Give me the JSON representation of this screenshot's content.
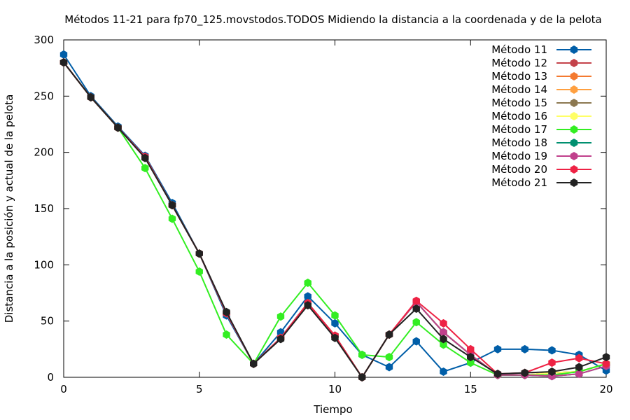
{
  "chart_data": {
    "type": "line",
    "title": "Métodos 11-21 para fp70_125.movstodos.TODOS Midiendo la distancia a la coordenada y de la pelota",
    "xlabel": "Tiempo",
    "ylabel": "Distancia a la posición y actual de la pelota",
    "xlim": [
      0,
      20
    ],
    "ylim": [
      0,
      300
    ],
    "xticks": [
      0,
      5,
      10,
      15,
      20
    ],
    "yticks": [
      0,
      50,
      100,
      150,
      200,
      250,
      300
    ],
    "grid": false,
    "legend_position": "top-right",
    "x": [
      0,
      1,
      2,
      3,
      4,
      5,
      6,
      7,
      8,
      9,
      10,
      11,
      12,
      13,
      14,
      15,
      16,
      17,
      18,
      19,
      20
    ],
    "series": [
      {
        "name": "Método 11",
        "color": "#005ea8",
        "values": [
          287,
          250,
          223,
          197,
          155,
          110,
          55,
          12,
          40,
          72,
          48,
          20,
          9,
          32,
          5,
          13,
          25,
          25,
          24,
          20,
          6
        ]
      },
      {
        "name": "Método 12",
        "color": "#c4424a",
        "values": [
          280,
          249,
          222,
          196,
          153,
          110,
          57,
          12,
          35,
          66,
          37,
          0,
          38,
          67,
          40,
          20,
          2,
          2,
          4,
          5,
          12
        ]
      },
      {
        "name": "Método 13",
        "color": "#f47a30",
        "values": [
          280,
          249,
          222,
          196,
          153,
          110,
          57,
          12,
          35,
          66,
          37,
          0,
          38,
          67,
          40,
          20,
          2,
          2,
          4,
          5,
          12
        ]
      },
      {
        "name": "Método 14",
        "color": "#ffa040",
        "values": [
          280,
          249,
          222,
          196,
          153,
          110,
          57,
          12,
          35,
          66,
          37,
          0,
          38,
          67,
          40,
          20,
          2,
          2,
          4,
          5,
          12
        ]
      },
      {
        "name": "Método 15",
        "color": "#8c7850",
        "values": [
          280,
          249,
          222,
          196,
          153,
          110,
          57,
          12,
          35,
          66,
          37,
          0,
          38,
          67,
          40,
          20,
          2,
          2,
          4,
          5,
          12
        ]
      },
      {
        "name": "Método 16",
        "color": "#ffff66",
        "values": [
          280,
          249,
          222,
          196,
          153,
          110,
          57,
          12,
          35,
          66,
          37,
          0,
          38,
          67,
          40,
          20,
          2,
          2,
          4,
          5,
          12
        ]
      },
      {
        "name": "Método 17",
        "color": "#33ee22",
        "values": [
          280,
          249,
          222,
          186,
          141,
          94,
          38,
          12,
          54,
          84,
          55,
          20,
          18,
          49,
          29,
          13,
          2,
          2,
          2,
          5,
          12
        ]
      },
      {
        "name": "Método 18",
        "color": "#009070",
        "values": [
          280,
          249,
          222,
          196,
          153,
          110,
          57,
          12,
          35,
          66,
          37,
          0,
          38,
          67,
          40,
          20,
          2,
          2,
          1,
          3,
          10
        ]
      },
      {
        "name": "Método 19",
        "color": "#c0408c",
        "values": [
          280,
          249,
          222,
          196,
          153,
          110,
          57,
          12,
          35,
          66,
          37,
          0,
          38,
          67,
          40,
          20,
          2,
          2,
          1,
          3,
          10
        ]
      },
      {
        "name": "Método 20",
        "color": "#ee2244",
        "values": [
          280,
          249,
          222,
          196,
          153,
          110,
          57,
          12,
          35,
          66,
          37,
          0,
          38,
          68,
          48,
          25,
          3,
          4,
          13,
          17,
          12
        ]
      },
      {
        "name": "Método 21",
        "color": "#222222",
        "values": [
          280,
          249,
          222,
          195,
          153,
          110,
          58,
          12,
          34,
          64,
          35,
          0,
          38,
          61,
          34,
          18,
          3,
          4,
          5,
          9,
          18
        ]
      }
    ]
  }
}
